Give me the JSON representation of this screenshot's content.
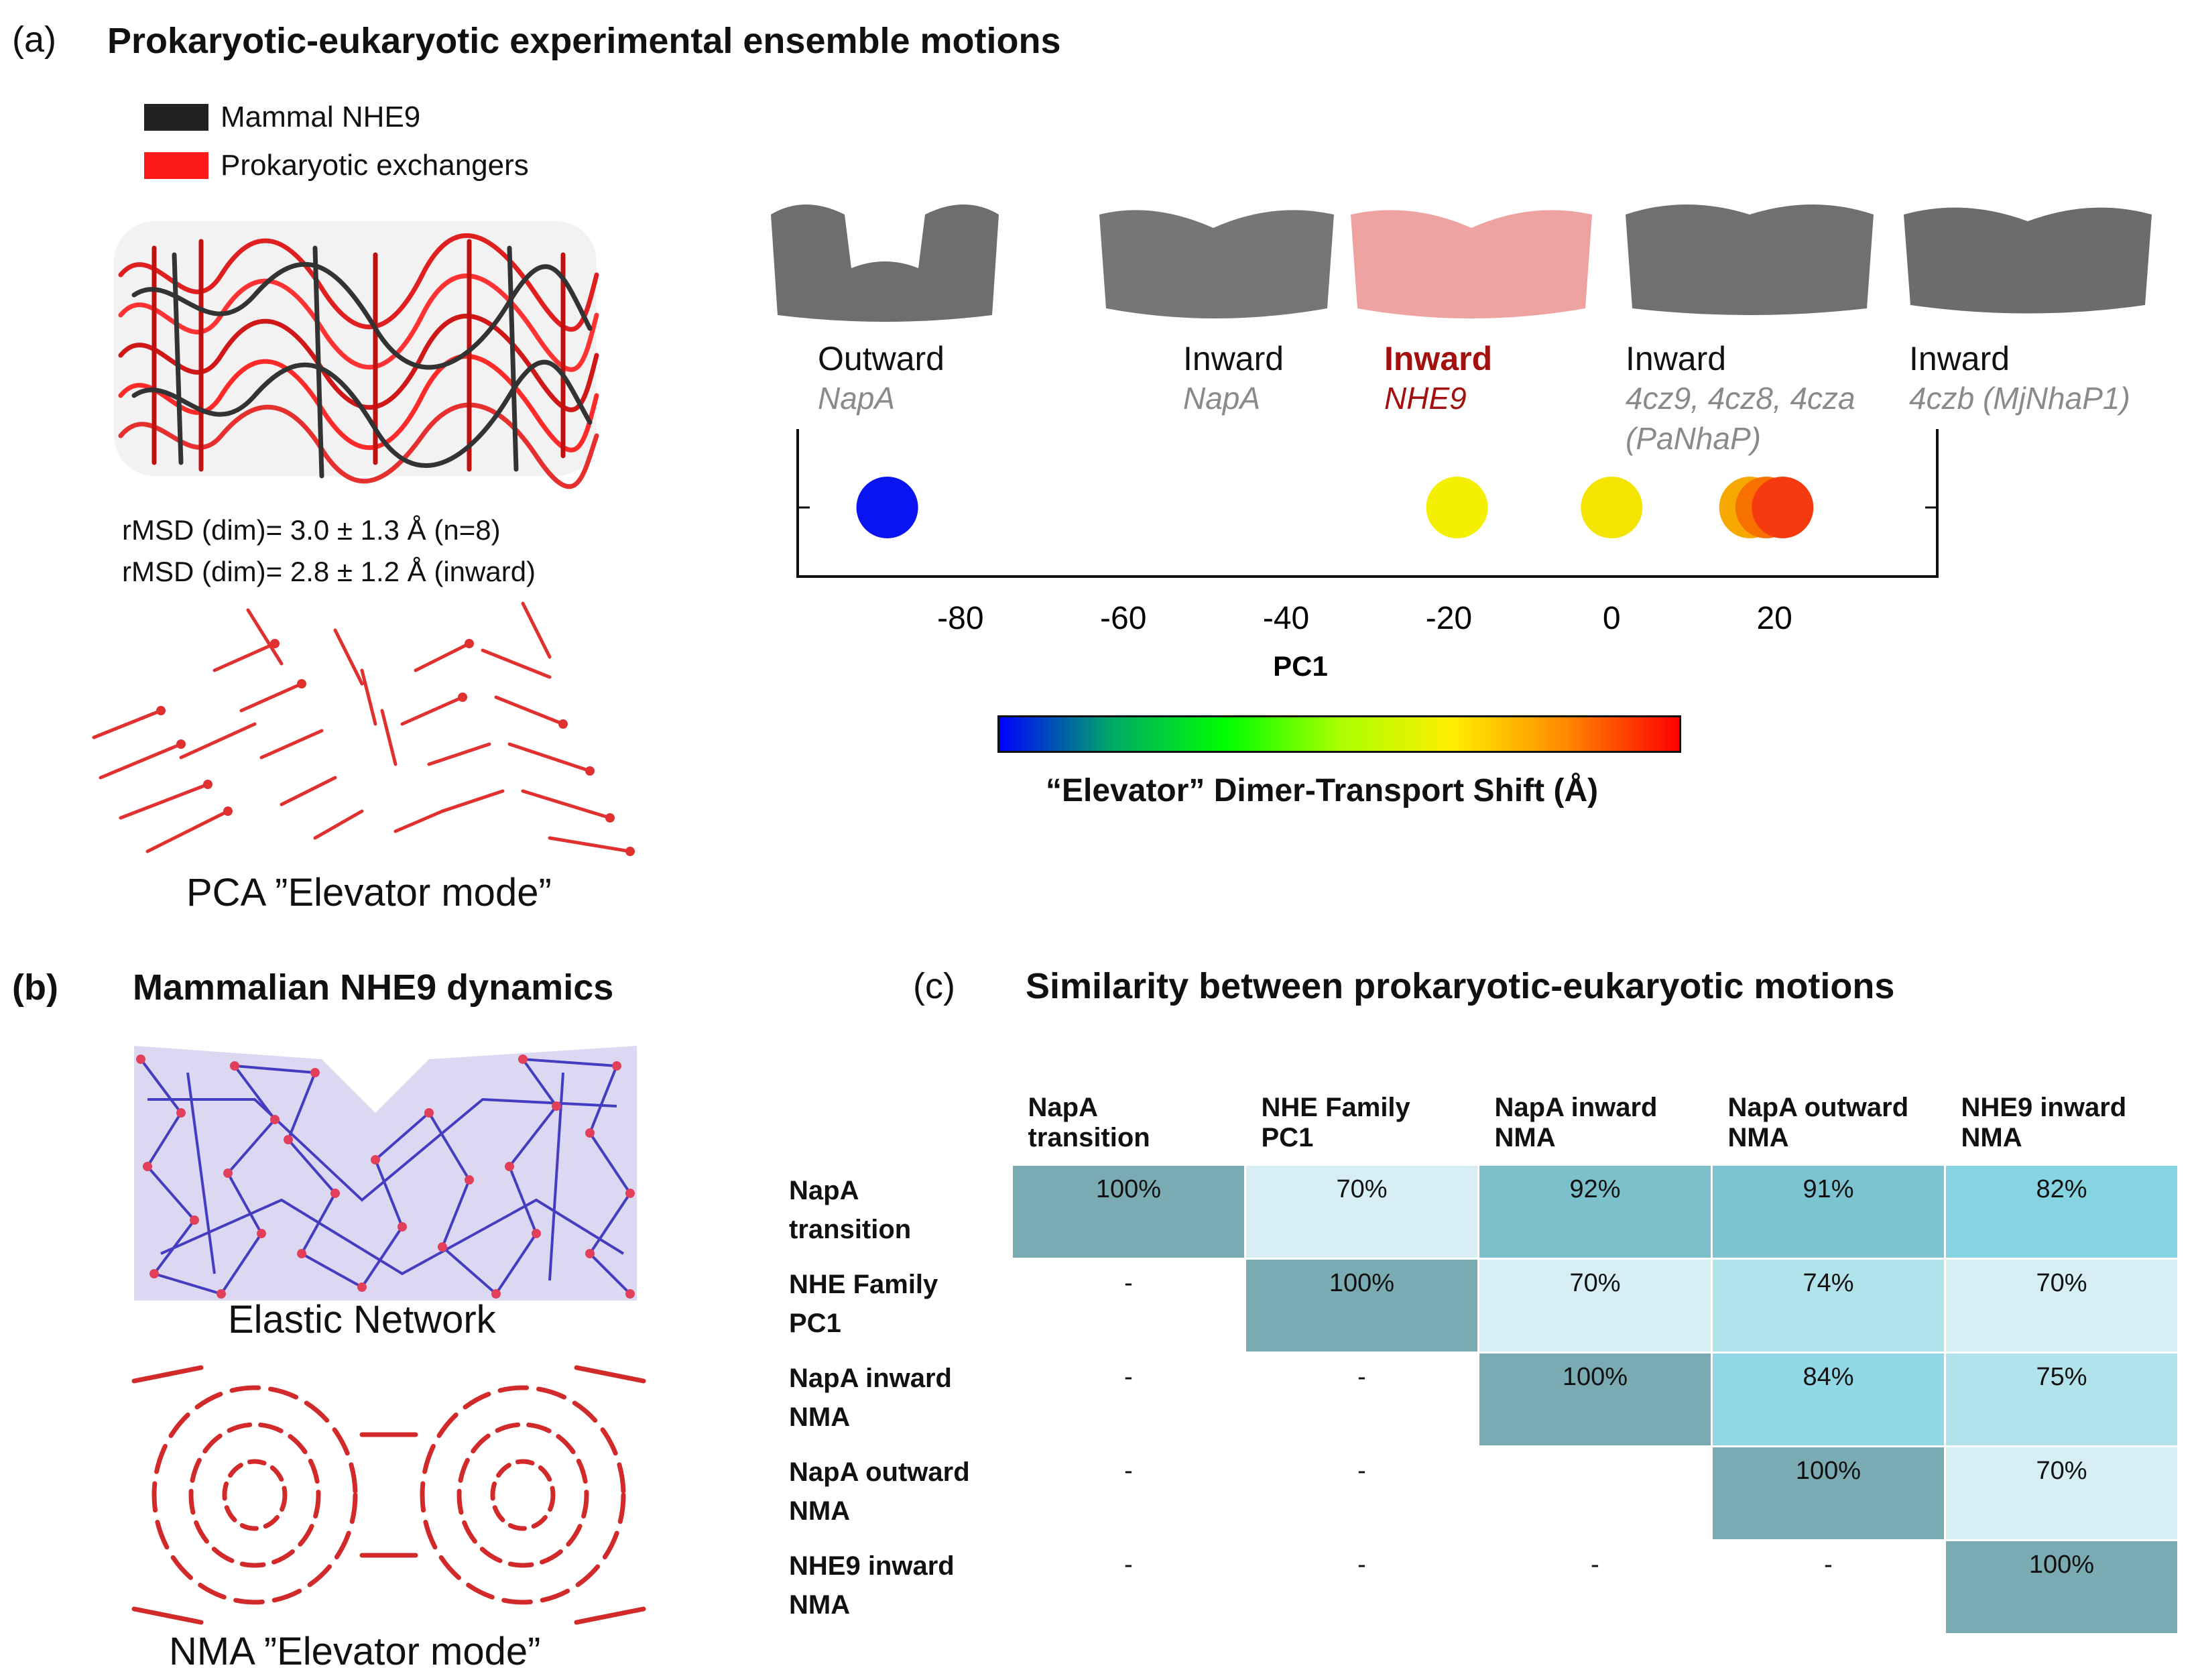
{
  "panel_a": {
    "letter": "(a)",
    "title": "Prokaryotic-eukaryotic experimental ensemble motions",
    "legend": [
      {
        "label": "Mammal NHE9",
        "color": "#222222"
      },
      {
        "label": "Prokaryotic exchangers",
        "color": "#ff1a1a"
      }
    ],
    "rmsd_lines": [
      "rMSD (dim)= 3.0 ± 1.3 Å (n=8)",
      "rMSD (dim)= 2.8 ± 1.2 Å (inward)"
    ],
    "pca_caption": "PCA ”Elevator mode”",
    "states": [
      {
        "title": "Outward",
        "sub": "NapA",
        "highlight": false
      },
      {
        "title": "Inward",
        "sub": "NapA",
        "highlight": false
      },
      {
        "title": "Inward",
        "sub": "NHE9",
        "highlight": true
      },
      {
        "title": "Inward",
        "sub": "4cz9, 4cz8, 4cza",
        "sub2": "(PaNhaP)",
        "highlight": false
      },
      {
        "title": "Inward",
        "sub": "4czb (MjNhaP1)",
        "highlight": false
      }
    ],
    "colorbar_label": "“Elevator” Dimer-Transport Shift (Å)"
  },
  "chart_data": {
    "type": "scatter",
    "title": "",
    "xlabel": "PC1",
    "ylabel": "",
    "xlim": [
      -100,
      40
    ],
    "ticks": [
      -80,
      -60,
      -40,
      -20,
      0,
      20
    ],
    "points": [
      {
        "x": -89,
        "color": "#0a14f0"
      },
      {
        "x": -19,
        "color": "#f5f000"
      },
      {
        "x": 0,
        "color": "#f5e400"
      },
      {
        "x": 17,
        "color": "#f7a800"
      },
      {
        "x": 19,
        "color": "#f77000"
      },
      {
        "x": 21,
        "color": "#f53a10"
      }
    ],
    "colorbar": [
      "#0000ff",
      "#00aa66",
      "#00ff00",
      "#aaff00",
      "#ffee00",
      "#ff8800",
      "#ff0000"
    ]
  },
  "panel_b": {
    "letter": "(b)",
    "title": "Mammalian NHE9 dynamics",
    "elastic_caption": "Elastic Network",
    "nma_caption": "NMA ”Elevator mode”"
  },
  "panel_c": {
    "letter": "(c)",
    "title": "Similarity between prokaryotic-eukaryotic motions",
    "columns": [
      [
        "NapA",
        "transition"
      ],
      [
        "NHE Family",
        "PC1"
      ],
      [
        "NapA inward",
        "NMA"
      ],
      [
        "NapA outward",
        "NMA"
      ],
      [
        "NHE9 inward",
        "NMA"
      ]
    ],
    "rows": [
      {
        "head": [
          "NapA",
          "transition"
        ],
        "cells": [
          "100%",
          "70%",
          "92%",
          "91%",
          "82%"
        ]
      },
      {
        "head": [
          "NHE Family",
          "PC1"
        ],
        "cells": [
          "-",
          "100%",
          "70%",
          "74%",
          "70%"
        ]
      },
      {
        "head": [
          "NapA inward",
          "NMA"
        ],
        "cells": [
          "-",
          "-",
          "100%",
          "84%",
          "75%"
        ]
      },
      {
        "head": [
          "NapA outward",
          "NMA"
        ],
        "cells": [
          "-",
          "-",
          "",
          "100%",
          "70%"
        ]
      },
      {
        "head": [
          "NHE9 inward",
          "NMA"
        ],
        "cells": [
          "-",
          "-",
          "-",
          "-",
          "100%"
        ]
      }
    ],
    "colors": {
      "diag": "#7aaab2",
      "light": "#d6eef4",
      "mid": "#b2e2ea",
      "strong": "#86d4e2",
      "blue": "#7cc4d2"
    }
  }
}
